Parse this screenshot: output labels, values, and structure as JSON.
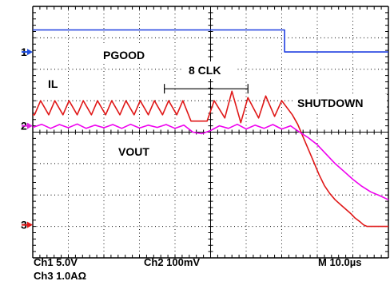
{
  "chart_data": {
    "type": "line",
    "title": "",
    "xlabel": "",
    "ylabel": "",
    "xlim": [
      0,
      10
    ],
    "ylim": [
      0,
      8
    ],
    "grid": true,
    "labels": {
      "pgood": "PGOOD",
      "clk": "8 CLK",
      "il": "IL",
      "shutdown": "SHUTDOWN",
      "vout": "VOUT"
    },
    "markers": [
      {
        "label": "1",
        "color": "#1f4fe0",
        "level": 6.55
      },
      {
        "label": "2",
        "color": "#e020e0",
        "level": 4.2
      },
      {
        "label": "3",
        "color": "#e01818",
        "level": 1.05
      }
    ],
    "clk_bracket": {
      "x_start": 3.7,
      "x_end": 6.05,
      "y": 5.38
    },
    "footer": {
      "ch1": "Ch1 5.0V",
      "ch2": "Ch2 100mV",
      "time": "M 10.0µs",
      "ch3": "Ch3 1.0AΩ"
    },
    "series": [
      {
        "color": "#1f3fe0",
        "x": [
          0,
          7.08,
          7.08,
          10
        ],
        "y": [
          7.25,
          7.25,
          6.55,
          6.55
        ]
      },
      {
        "color": "#e01818",
        "x": [
          0,
          0.05,
          0.22,
          0.45,
          0.62,
          0.85,
          1.02,
          1.25,
          1.42,
          1.65,
          1.82,
          2.05,
          2.22,
          2.45,
          2.62,
          2.85,
          3.02,
          3.25,
          3.42,
          3.65,
          3.82,
          4.05,
          4.22,
          4.45,
          4.9,
          5.1,
          5.4,
          5.6,
          5.85,
          6.05,
          6.35,
          6.55,
          6.8,
          7.0,
          7.3,
          7.45,
          7.6,
          7.75,
          7.9,
          8.05,
          8.2,
          8.35,
          8.5,
          8.65,
          8.8,
          8.95,
          9.05,
          9.2,
          9.3,
          9.4,
          10
        ],
        "y": [
          4.55,
          4.55,
          5.0,
          4.55,
          5.0,
          4.55,
          5.0,
          4.55,
          5.0,
          4.55,
          5.0,
          4.55,
          5.0,
          4.55,
          5.0,
          4.55,
          5.0,
          4.55,
          5.0,
          4.55,
          5.0,
          4.55,
          5.0,
          4.35,
          4.35,
          5.0,
          4.45,
          5.3,
          4.3,
          5.1,
          4.45,
          5.15,
          4.5,
          5.0,
          4.55,
          4.25,
          3.85,
          3.45,
          3.05,
          2.65,
          2.3,
          2.05,
          1.85,
          1.7,
          1.55,
          1.4,
          1.28,
          1.15,
          1.05,
          1.0,
          1.0
        ]
      },
      {
        "color": "#ee00ee",
        "x": [
          0,
          0.25,
          0.5,
          0.75,
          1.0,
          1.25,
          1.5,
          1.75,
          2.0,
          2.25,
          2.5,
          2.75,
          3.0,
          3.25,
          3.5,
          3.75,
          4.0,
          4.25,
          4.5,
          4.75,
          5.0,
          5.25,
          5.5,
          5.75,
          6.0,
          6.25,
          6.5,
          6.75,
          7.0,
          7.25,
          7.5,
          7.75,
          8.0,
          8.25,
          8.5,
          8.75,
          9.0,
          9.25,
          9.5,
          9.75,
          10
        ],
        "y": [
          4.15,
          4.25,
          4.12,
          4.24,
          4.14,
          4.26,
          4.12,
          4.22,
          4.14,
          4.24,
          4.12,
          4.25,
          4.13,
          4.22,
          4.15,
          4.24,
          4.12,
          4.22,
          4.0,
          3.95,
          4.05,
          4.2,
          4.12,
          4.25,
          4.1,
          4.22,
          4.12,
          4.24,
          4.1,
          4.2,
          4.0,
          3.82,
          3.6,
          3.3,
          3.0,
          2.75,
          2.5,
          2.28,
          2.1,
          1.98,
          1.85
        ]
      }
    ]
  }
}
